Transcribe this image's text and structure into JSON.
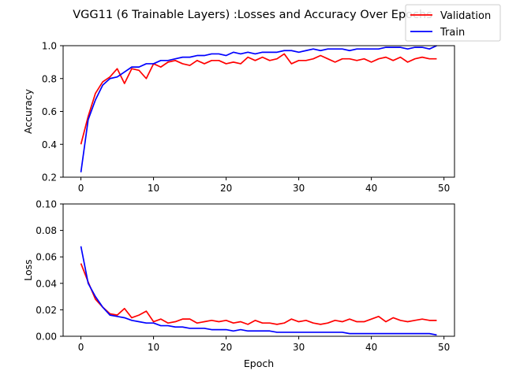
{
  "figure": {
    "title": "VGG11 (6 Trainable Layers) :Losses and Accuracy Over Epochs",
    "legend": {
      "placement": "top-right",
      "entries": [
        {
          "label": "Validation",
          "color": "#ff0000"
        },
        {
          "label": "Train",
          "color": "#0000ff"
        }
      ]
    }
  },
  "chart_data": [
    {
      "type": "line",
      "title": "",
      "xlabel": "",
      "ylabel": "Accuracy",
      "xlim": [
        -2.45,
        51.45
      ],
      "ylim": [
        0.2,
        1.0
      ],
      "xticks": [
        0,
        10,
        20,
        30,
        40,
        50
      ],
      "yticks": [
        0.2,
        0.4,
        0.6,
        0.8,
        1.0
      ],
      "ytick_labels": [
        "0.2",
        "0.4",
        "0.6",
        "0.8",
        "1.0"
      ],
      "grid": false,
      "x": [
        0,
        1,
        2,
        3,
        4,
        5,
        6,
        7,
        8,
        9,
        10,
        11,
        12,
        13,
        14,
        15,
        16,
        17,
        18,
        19,
        20,
        21,
        22,
        23,
        24,
        25,
        26,
        27,
        28,
        29,
        30,
        31,
        32,
        33,
        34,
        35,
        36,
        37,
        38,
        39,
        40,
        41,
        42,
        43,
        44,
        45,
        46,
        47,
        48,
        49
      ],
      "series": [
        {
          "name": "Validation",
          "color": "#ff0000",
          "values": [
            0.4,
            0.57,
            0.71,
            0.78,
            0.81,
            0.86,
            0.77,
            0.86,
            0.85,
            0.8,
            0.89,
            0.87,
            0.9,
            0.91,
            0.89,
            0.88,
            0.91,
            0.89,
            0.91,
            0.91,
            0.89,
            0.9,
            0.89,
            0.93,
            0.91,
            0.93,
            0.91,
            0.92,
            0.95,
            0.89,
            0.91,
            0.91,
            0.92,
            0.94,
            0.92,
            0.9,
            0.92,
            0.92,
            0.91,
            0.92,
            0.9,
            0.92,
            0.93,
            0.91,
            0.93,
            0.9,
            0.92,
            0.93,
            0.92,
            0.92
          ]
        },
        {
          "name": "Train",
          "color": "#0000ff",
          "values": [
            0.23,
            0.55,
            0.67,
            0.76,
            0.8,
            0.81,
            0.84,
            0.87,
            0.87,
            0.89,
            0.89,
            0.91,
            0.91,
            0.92,
            0.93,
            0.93,
            0.94,
            0.94,
            0.95,
            0.95,
            0.94,
            0.96,
            0.95,
            0.96,
            0.95,
            0.96,
            0.96,
            0.96,
            0.97,
            0.97,
            0.96,
            0.97,
            0.98,
            0.97,
            0.98,
            0.98,
            0.98,
            0.97,
            0.98,
            0.98,
            0.98,
            0.98,
            0.99,
            0.99,
            0.99,
            0.98,
            0.99,
            0.99,
            0.98,
            1.0
          ]
        }
      ]
    },
    {
      "type": "line",
      "title": "",
      "xlabel": "Epoch",
      "ylabel": "Loss",
      "xlim": [
        -2.45,
        51.45
      ],
      "ylim": [
        0.0,
        0.1
      ],
      "xticks": [
        0,
        10,
        20,
        30,
        40,
        50
      ],
      "yticks": [
        0.0,
        0.02,
        0.04,
        0.06,
        0.08,
        0.1
      ],
      "ytick_labels": [
        "0.00",
        "0.02",
        "0.04",
        "0.06",
        "0.08",
        "0.10"
      ],
      "grid": false,
      "x": [
        0,
        1,
        2,
        3,
        4,
        5,
        6,
        7,
        8,
        9,
        10,
        11,
        12,
        13,
        14,
        15,
        16,
        17,
        18,
        19,
        20,
        21,
        22,
        23,
        24,
        25,
        26,
        27,
        28,
        29,
        30,
        31,
        32,
        33,
        34,
        35,
        36,
        37,
        38,
        39,
        40,
        41,
        42,
        43,
        44,
        45,
        46,
        47,
        48,
        49
      ],
      "series": [
        {
          "name": "Validation",
          "color": "#ff0000",
          "values": [
            0.055,
            0.041,
            0.028,
            0.022,
            0.017,
            0.016,
            0.021,
            0.014,
            0.016,
            0.019,
            0.011,
            0.013,
            0.01,
            0.011,
            0.013,
            0.013,
            0.01,
            0.011,
            0.012,
            0.011,
            0.012,
            0.01,
            0.011,
            0.009,
            0.012,
            0.01,
            0.01,
            0.009,
            0.01,
            0.013,
            0.011,
            0.012,
            0.01,
            0.009,
            0.01,
            0.012,
            0.011,
            0.013,
            0.011,
            0.011,
            0.013,
            0.015,
            0.011,
            0.014,
            0.012,
            0.011,
            0.012,
            0.013,
            0.012,
            0.012
          ]
        },
        {
          "name": "Train",
          "color": "#0000ff",
          "values": [
            0.068,
            0.04,
            0.03,
            0.022,
            0.016,
            0.015,
            0.014,
            0.012,
            0.011,
            0.01,
            0.01,
            0.008,
            0.008,
            0.007,
            0.007,
            0.006,
            0.006,
            0.006,
            0.005,
            0.005,
            0.005,
            0.004,
            0.005,
            0.004,
            0.004,
            0.004,
            0.004,
            0.003,
            0.003,
            0.003,
            0.003,
            0.003,
            0.003,
            0.003,
            0.003,
            0.003,
            0.003,
            0.002,
            0.002,
            0.002,
            0.002,
            0.002,
            0.002,
            0.002,
            0.002,
            0.002,
            0.002,
            0.002,
            0.002,
            0.001
          ]
        }
      ]
    }
  ]
}
